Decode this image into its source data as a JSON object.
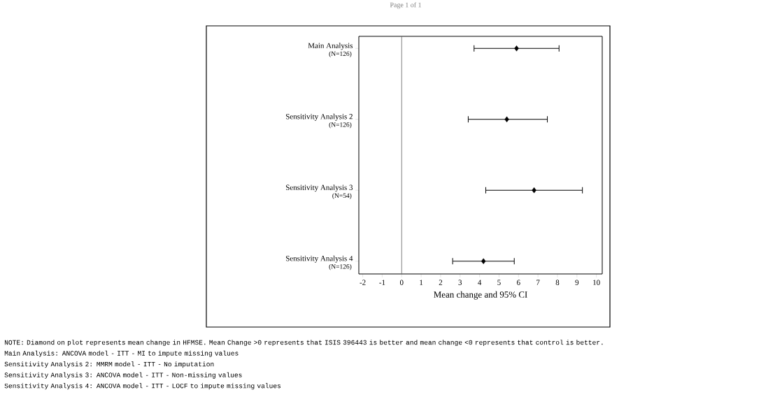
{
  "chart_data": {
    "type": "scatter",
    "orientation": "horizontal",
    "xlabel": "Mean change and 95% CI",
    "categories": [
      "Main Analysis",
      "Sensitivity Analysis 2",
      "Sensitivity Analysis 3",
      "Sensitivity Analysis 4"
    ],
    "series": [
      {
        "color": "#000000",
        "values": [
          5.9,
          5.4,
          6.8,
          4.2
        ],
        "errors": [
          [
            3.7,
            8.1
          ],
          [
            3.4,
            7.5
          ],
          [
            4.3,
            9.3
          ],
          [
            2.6,
            5.8
          ]
        ]
      }
    ],
    "marker": "diamond",
    "xlim": [
      -2.2,
      10.3
    ],
    "xticks": [
      -2,
      -1,
      0,
      1,
      2,
      3,
      4,
      5,
      6,
      7,
      8,
      9,
      10
    ],
    "ref_lines": [
      {
        "axis": "x",
        "value": 0,
        "color": "#606060"
      }
    ],
    "annotations": [
      "Page 1 of 1",
      "(N=126)",
      "(N=126)",
      "(N=54)",
      "(N=126)",
      "NOTE: Diamond on plot represents mean change in HFMSE. Mean Change >0 represents that ISIS 396443 is better and mean change <0 represents that control is better.",
      "Main Analysis: ANCOVA model - ITT - MI to impute missing values",
      "Sensitivity Analysis 2: MMRM model - ITT - No imputation",
      "Sensitivity Analysis 3: ANCOVA model - ITT - Non-missing values",
      "Sensitivity Analysis 4: ANCOVA model - ITT - LOCF to impute missing values"
    ]
  }
}
